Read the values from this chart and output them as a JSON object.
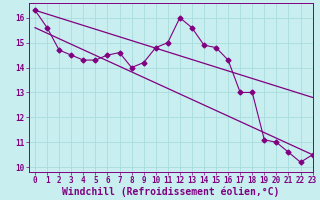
{
  "title": "",
  "xlabel": "Windchill (Refroidissement éolien,°C)",
  "ylabel": "",
  "bg_color": "#c8eef0",
  "grid_color": "#aadddd",
  "line_color": "#800080",
  "x_values": [
    0,
    1,
    2,
    3,
    4,
    5,
    6,
    7,
    8,
    9,
    10,
    11,
    12,
    13,
    14,
    15,
    16,
    17,
    18,
    19,
    20,
    21,
    22,
    23
  ],
  "y_values": [
    16.3,
    15.6,
    14.7,
    14.5,
    14.3,
    14.3,
    14.5,
    14.6,
    14.0,
    14.2,
    14.8,
    15.0,
    16.0,
    15.6,
    14.9,
    14.8,
    14.3,
    13.0,
    13.0,
    11.1,
    11.0,
    10.6,
    10.2,
    10.5
  ],
  "trend1_x": [
    0,
    23
  ],
  "trend1_y": [
    16.3,
    12.8
  ],
  "trend2_x": [
    0,
    23
  ],
  "trend2_y": [
    15.6,
    10.5
  ],
  "xlim": [
    -0.5,
    23
  ],
  "ylim": [
    9.8,
    16.6
  ],
  "xticks": [
    0,
    1,
    2,
    3,
    4,
    5,
    6,
    7,
    8,
    9,
    10,
    11,
    12,
    13,
    14,
    15,
    16,
    17,
    18,
    19,
    20,
    21,
    22,
    23
  ],
  "yticks": [
    10,
    11,
    12,
    13,
    14,
    15,
    16
  ],
  "tick_fontsize": 5.5,
  "xlabel_fontsize": 7.0,
  "marker": "D",
  "marker_size": 2.5
}
